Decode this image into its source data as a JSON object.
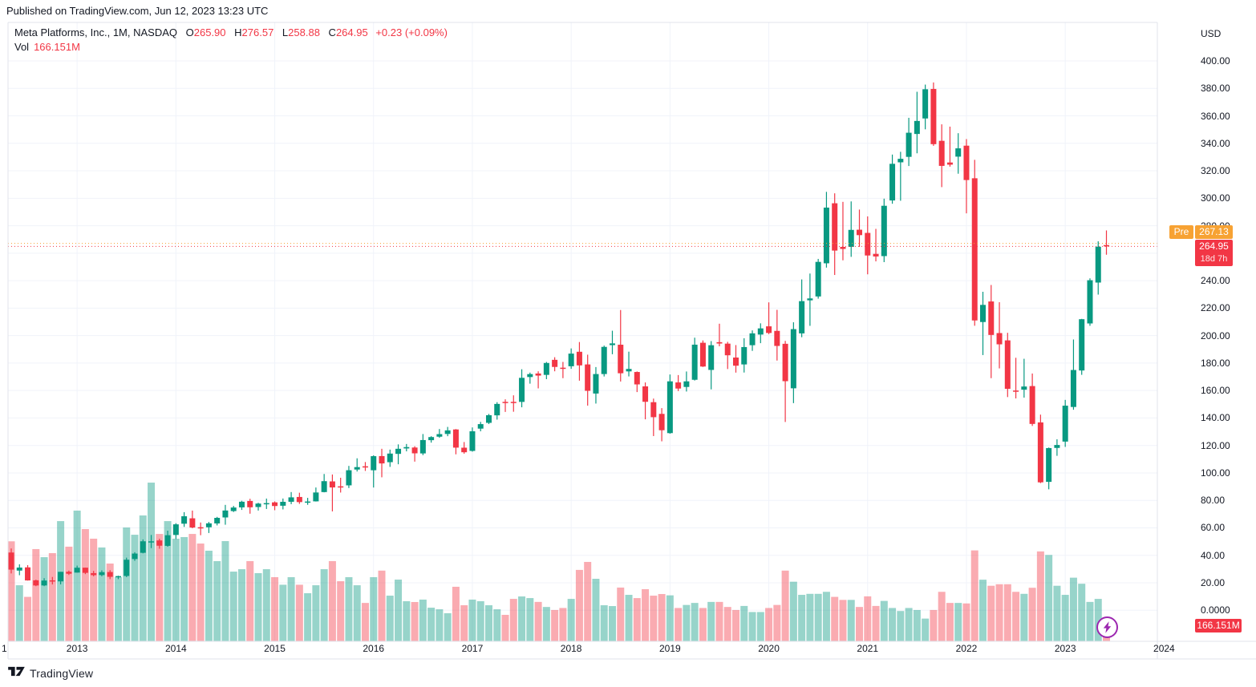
{
  "header": {
    "published": "Published on TradingView.com, Jun 12, 2023 13:23 UTC"
  },
  "legend": {
    "title": "Meta Platforms, Inc., 1M, NASDAQ",
    "ohlc": [
      {
        "k": "O",
        "v": "265.90"
      },
      {
        "k": "H",
        "v": "276.57"
      },
      {
        "k": "L",
        "v": "258.88"
      },
      {
        "k": "C",
        "v": "264.95"
      }
    ],
    "change": "+0.23 (+0.09%)",
    "vol_label": "Vol",
    "vol_value": "166.151M"
  },
  "price_axis": {
    "currency": "USD",
    "ticks": [
      {
        "label": "400.00",
        "value": 400
      },
      {
        "label": "380.00",
        "value": 380
      },
      {
        "label": "360.00",
        "value": 360
      },
      {
        "label": "340.00",
        "value": 340
      },
      {
        "label": "320.00",
        "value": 320
      },
      {
        "label": "300.00",
        "value": 300
      },
      {
        "label": "280.00",
        "value": 280
      },
      {
        "label": "260.00",
        "value": 260
      },
      {
        "label": "240.00",
        "value": 240
      },
      {
        "label": "220.00",
        "value": 220
      },
      {
        "label": "200.00",
        "value": 200
      },
      {
        "label": "180.00",
        "value": 180
      },
      {
        "label": "160.00",
        "value": 160
      },
      {
        "label": "140.00",
        "value": 140
      },
      {
        "label": "120.00",
        "value": 120
      },
      {
        "label": "100.00",
        "value": 100
      },
      {
        "label": "80.00",
        "value": 80
      },
      {
        "label": "60.00",
        "value": 60
      },
      {
        "label": "40.00",
        "value": 40
      },
      {
        "label": "20.00",
        "value": 20
      },
      {
        "label": "0.0000",
        "value": 0
      }
    ],
    "pre_badge": {
      "label": "Pre",
      "value": "267.13",
      "price": 267.13
    },
    "last_badge": {
      "value": "264.95",
      "countdown": "18d 7h",
      "price": 264.95
    },
    "volume_badge": "166.151M"
  },
  "time_axis": {
    "labels": [
      {
        "label": "1",
        "m": null
      },
      {
        "label": "2013",
        "m": 8
      },
      {
        "label": "2014",
        "m": 20
      },
      {
        "label": "2015",
        "m": 32
      },
      {
        "label": "2016",
        "m": 44
      },
      {
        "label": "2017",
        "m": 56
      },
      {
        "label": "2018",
        "m": 68
      },
      {
        "label": "2019",
        "m": 80
      },
      {
        "label": "2020",
        "m": 92
      },
      {
        "label": "2021",
        "m": 104
      },
      {
        "label": "2022",
        "m": 116
      },
      {
        "label": "2023",
        "m": 128
      },
      {
        "label": "2024",
        "m": 140
      }
    ]
  },
  "footer": {
    "logo_text": "TradingView"
  },
  "colors": {
    "up": "#089981",
    "down": "#f23645",
    "vol_opacity": 0.42,
    "pre": "#f7a233",
    "badge_red": "#f23645",
    "grid": "#f0f3fa",
    "border": "#e0e3eb",
    "text": "#131722",
    "bolt": "#9c27b0"
  },
  "chart_data": {
    "type": "candlestick_with_volume",
    "title": "Meta Platforms, Inc.",
    "exchange": "NASDAQ",
    "interval": "1M",
    "currency": "USD",
    "start_month": "2012-05",
    "end_month": "2023-06",
    "price_range_labeled": [
      0,
      400
    ],
    "grid": true,
    "pre_market_price": 267.13,
    "last_close": 264.95,
    "current_volume_millions": 166.151,
    "fields": [
      "open",
      "high",
      "low",
      "close",
      "volume_millions"
    ],
    "candles": [
      [
        42.05,
        45.0,
        26.83,
        29.6,
        990
      ],
      [
        28.89,
        33.45,
        25.52,
        31.1,
        555
      ],
      [
        31.25,
        32.88,
        21.61,
        21.71,
        440
      ],
      [
        21.82,
        22.28,
        17.55,
        18.06,
        913
      ],
      [
        18.08,
        23.37,
        17.55,
        21.66,
        833
      ],
      [
        21.78,
        24.25,
        18.8,
        21.11,
        873
      ],
      [
        21.02,
        28.0,
        18.87,
        28.0,
        1190
      ],
      [
        28.01,
        28.88,
        25.71,
        26.62,
        937
      ],
      [
        27.44,
        32.51,
        27.42,
        30.98,
        1294
      ],
      [
        31.01,
        31.02,
        26.34,
        27.25,
        1111
      ],
      [
        27.05,
        28.68,
        24.72,
        25.58,
        1016
      ],
      [
        25.63,
        29.07,
        24.77,
        27.77,
        929
      ],
      [
        27.85,
        29.19,
        22.67,
        24.35,
        770
      ],
      [
        24.27,
        25.17,
        22.67,
        24.88,
        635
      ],
      [
        24.97,
        38.31,
        24.15,
        36.8,
        1127
      ],
      [
        37.3,
        42.26,
        36.02,
        41.29,
        1055
      ],
      [
        41.84,
        51.6,
        41.44,
        50.23,
        1246
      ],
      [
        49.97,
        54.83,
        45.26,
        50.21,
        1571
      ],
      [
        50.85,
        52.09,
        44.82,
        47.01,
        1063
      ],
      [
        46.9,
        57.96,
        46.26,
        54.65,
        1190
      ],
      [
        54.83,
        63.37,
        51.85,
        62.57,
        1016
      ],
      [
        63.03,
        71.44,
        60.7,
        68.46,
        1032
      ],
      [
        66.96,
        72.59,
        59.72,
        60.24,
        1063
      ],
      [
        60.46,
        63.91,
        54.66,
        59.78,
        968
      ],
      [
        60.43,
        64.3,
        56.26,
        63.3,
        897
      ],
      [
        63.23,
        68.0,
        61.79,
        67.29,
        794
      ],
      [
        67.58,
        76.74,
        62.28,
        72.65,
        992
      ],
      [
        72.22,
        75.99,
        71.55,
        74.82,
        690
      ],
      [
        74.92,
        79.71,
        73.07,
        79.04,
        714
      ],
      [
        79.59,
        81.16,
        70.32,
        74.99,
        794
      ],
      [
        75.18,
        78.27,
        72.61,
        77.7,
        675
      ],
      [
        77.83,
        81.33,
        73.75,
        78.02,
        714
      ],
      [
        78.58,
        79.25,
        72.86,
        75.91,
        635
      ],
      [
        76.11,
        81.37,
        73.44,
        78.97,
        560
      ],
      [
        79.0,
        86.07,
        77.26,
        82.22,
        635
      ],
      [
        82.5,
        85.59,
        77.46,
        78.77,
        560
      ],
      [
        78.99,
        81.85,
        76.79,
        79.19,
        476
      ],
      [
        79.3,
        89.39,
        79.18,
        85.77,
        555
      ],
      [
        86.06,
        99.24,
        85.87,
        94.01,
        714
      ],
      [
        93.83,
        98.88,
        72.0,
        89.43,
        794
      ],
      [
        90.25,
        96.49,
        85.72,
        89.9,
        595
      ],
      [
        90.95,
        105.12,
        89.0,
        101.97,
        635
      ],
      [
        102.47,
        110.65,
        101.03,
        104.24,
        555
      ],
      [
        104.83,
        107.92,
        101.46,
        104.66,
        380
      ],
      [
        101.95,
        112.84,
        89.37,
        112.21,
        635
      ],
      [
        112.27,
        117.59,
        96.82,
        106.92,
        700
      ],
      [
        107.83,
        116.99,
        104.4,
        114.1,
        452
      ],
      [
        113.88,
        120.79,
        106.31,
        117.58,
        611
      ],
      [
        117.83,
        121.08,
        115.72,
        118.81,
        397
      ],
      [
        118.5,
        119.44,
        108.23,
        114.28,
        389
      ],
      [
        114.2,
        128.33,
        112.97,
        123.94,
        413
      ],
      [
        123.85,
        126.73,
        122.07,
        126.12,
        333
      ],
      [
        126.38,
        131.98,
        125.6,
        128.27,
        317
      ],
      [
        128.38,
        133.5,
        126.75,
        130.99,
        278
      ],
      [
        131.66,
        131.94,
        113.55,
        118.42,
        540
      ],
      [
        118.38,
        122.5,
        114.0,
        115.05,
        357
      ],
      [
        116.03,
        133.14,
        115.51,
        130.32,
        413
      ],
      [
        132.25,
        137.18,
        130.3,
        135.54,
        397
      ],
      [
        136.47,
        142.95,
        135.61,
        142.05,
        357
      ],
      [
        141.93,
        151.53,
        138.81,
        150.25,
        317
      ],
      [
        151.74,
        153.6,
        144.42,
        151.46,
        262
      ],
      [
        151.75,
        156.5,
        144.56,
        150.98,
        420
      ],
      [
        151.72,
        175.49,
        147.8,
        169.25,
        444
      ],
      [
        169.82,
        173.05,
        165.0,
        171.97,
        428
      ],
      [
        172.4,
        174.0,
        161.56,
        170.87,
        390
      ],
      [
        171.39,
        180.8,
        168.28,
        180.06,
        340
      ],
      [
        182.36,
        184.25,
        174.0,
        177.18,
        310
      ],
      [
        176.63,
        180.84,
        169.0,
        176.46,
        330
      ],
      [
        177.68,
        190.66,
        175.8,
        186.89,
        420
      ],
      [
        188.22,
        195.32,
        167.18,
        178.32,
        707
      ],
      [
        179.01,
        186.1,
        149.02,
        159.79,
        786
      ],
      [
        157.81,
        177.1,
        150.51,
        172.0,
        619
      ],
      [
        172.0,
        192.72,
        170.23,
        191.78,
        357
      ],
      [
        193.07,
        203.55,
        186.43,
        194.32,
        349
      ],
      [
        193.37,
        218.62,
        166.56,
        172.58,
        532
      ],
      [
        173.93,
        188.3,
        170.27,
        175.73,
        460
      ],
      [
        173.5,
        173.89,
        158.87,
        164.46,
        428
      ],
      [
        163.03,
        165.88,
        139.03,
        151.79,
        516
      ],
      [
        151.52,
        154.13,
        126.85,
        140.61,
        452
      ],
      [
        143.0,
        147.19,
        123.02,
        131.09,
        468
      ],
      [
        128.99,
        171.68,
        128.56,
        166.69,
        455
      ],
      [
        165.9,
        171.26,
        159.59,
        161.45,
        330
      ],
      [
        162.6,
        173.87,
        159.28,
        166.69,
        360
      ],
      [
        167.83,
        198.48,
        167.28,
        193.4,
        380
      ],
      [
        194.78,
        196.47,
        177.16,
        177.47,
        330
      ],
      [
        175.0,
        196.0,
        160.84,
        193.0,
        390
      ],
      [
        195.21,
        208.66,
        192.23,
        194.23,
        390
      ],
      [
        194.15,
        195.45,
        175.65,
        185.67,
        340
      ],
      [
        184.02,
        193.1,
        173.05,
        178.08,
        310
      ],
      [
        179.0,
        198.09,
        173.11,
        191.65,
        350
      ],
      [
        193.0,
        203.77,
        188.87,
        201.64,
        290
      ],
      [
        200.75,
        208.93,
        194.49,
        205.25,
        290
      ],
      [
        206.75,
        224.2,
        201.06,
        201.91,
        330
      ],
      [
        203.44,
        218.77,
        181.83,
        192.47,
        360
      ],
      [
        194.03,
        196.15,
        137.1,
        166.8,
        700
      ],
      [
        161.63,
        209.7,
        150.83,
        204.71,
        590
      ],
      [
        201.6,
        240.9,
        198.82,
        225.09,
        460
      ],
      [
        225.68,
        245.19,
        207.11,
        227.07,
        470
      ],
      [
        228.5,
        255.85,
        226.9,
        253.67,
        470
      ],
      [
        252.65,
        304.67,
        249.5,
        293.2,
        490
      ],
      [
        296.35,
        303.6,
        244.13,
        261.9,
        440
      ],
      [
        264.6,
        297.38,
        254.82,
        263.11,
        410
      ],
      [
        264.6,
        297.71,
        257.34,
        276.97,
        410
      ],
      [
        277.1,
        291.78,
        264.63,
        273.16,
        340
      ],
      [
        274.78,
        286.79,
        244.61,
        258.33,
        445
      ],
      [
        259.5,
        277.71,
        254.04,
        257.62,
        350
      ],
      [
        257.88,
        299.71,
        253.5,
        294.53,
        400
      ],
      [
        298.4,
        331.81,
        296.0,
        325.08,
        330
      ],
      [
        326.17,
        333.83,
        298.19,
        328.73,
        300
      ],
      [
        330.14,
        358.58,
        323.48,
        347.71,
        330
      ],
      [
        346.81,
        377.55,
        332.75,
        356.3,
        310
      ],
      [
        358.1,
        382.76,
        350.2,
        379.38,
        225
      ],
      [
        379.6,
        384.33,
        338.16,
        339.39,
        310
      ],
      [
        341.83,
        353.83,
        308.11,
        323.57,
        490
      ],
      [
        326.04,
        352.16,
        323.0,
        324.46,
        380
      ],
      [
        330.3,
        347.37,
        317.87,
        336.35,
        380
      ],
      [
        338.3,
        343.09,
        289.01,
        313.26,
        375
      ],
      [
        314.56,
        328.0,
        207.16,
        211.03,
        900
      ],
      [
        209.88,
        231.91,
        185.82,
        222.36,
        610
      ],
      [
        224.85,
        236.86,
        169.0,
        200.47,
        550
      ],
      [
        201.84,
        224.3,
        176.11,
        193.64,
        565
      ],
      [
        196.52,
        202.03,
        155.23,
        161.25,
        565
      ],
      [
        160.0,
        183.85,
        154.25,
        159.1,
        490
      ],
      [
        160.62,
        183.12,
        154.84,
        162.93,
        470
      ],
      [
        163.25,
        172.4,
        134.21,
        135.68,
        530
      ],
      [
        136.79,
        142.45,
        92.6,
        93.16,
        890
      ],
      [
        93.5,
        118.49,
        88.09,
        118.1,
        855
      ],
      [
        118.2,
        124.5,
        112.46,
        120.34,
        550
      ],
      [
        122.82,
        153.19,
        118.96,
        148.97,
        460
      ],
      [
        148.03,
        197.16,
        146.01,
        174.94,
        630
      ],
      [
        174.59,
        212.17,
        171.43,
        211.94,
        570
      ],
      [
        208.84,
        241.69,
        207.13,
        240.32,
        390
      ],
      [
        238.62,
        268.65,
        229.85,
        264.72,
        420
      ],
      [
        265.9,
        276.57,
        258.88,
        264.95,
        166.151
      ]
    ]
  }
}
